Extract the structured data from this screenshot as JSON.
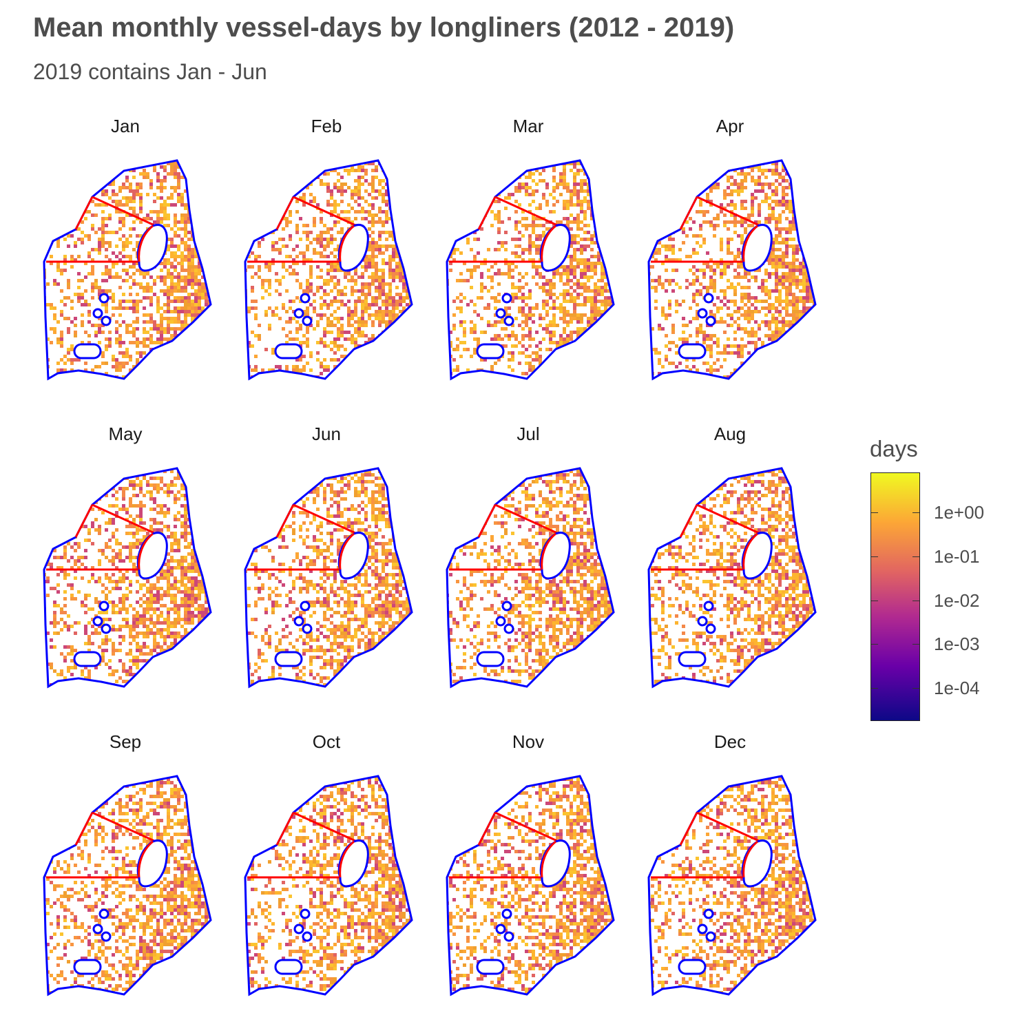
{
  "chart_data": {
    "type": "heatmap",
    "title": "Mean monthly vessel-days by longliners (2012 - 2019)",
    "subtitle": "2019 contains Jan - Jun",
    "panels": [
      "Jan",
      "Feb",
      "Mar",
      "Apr",
      "May",
      "Jun",
      "Jul",
      "Aug",
      "Sep",
      "Oct",
      "Nov",
      "Dec"
    ],
    "layout": "facet_wrap 3 rows x 4 cols",
    "legend": {
      "title": "days",
      "scale": "log10",
      "colormap": "plasma",
      "breaks": [
        "1e+00",
        "1e-01",
        "1e-02",
        "1e-03",
        "1e-04"
      ],
      "position": "right"
    },
    "boundary_colors": {
      "outer": "#0000ff",
      "inner_lines": "#ff0000"
    }
  }
}
